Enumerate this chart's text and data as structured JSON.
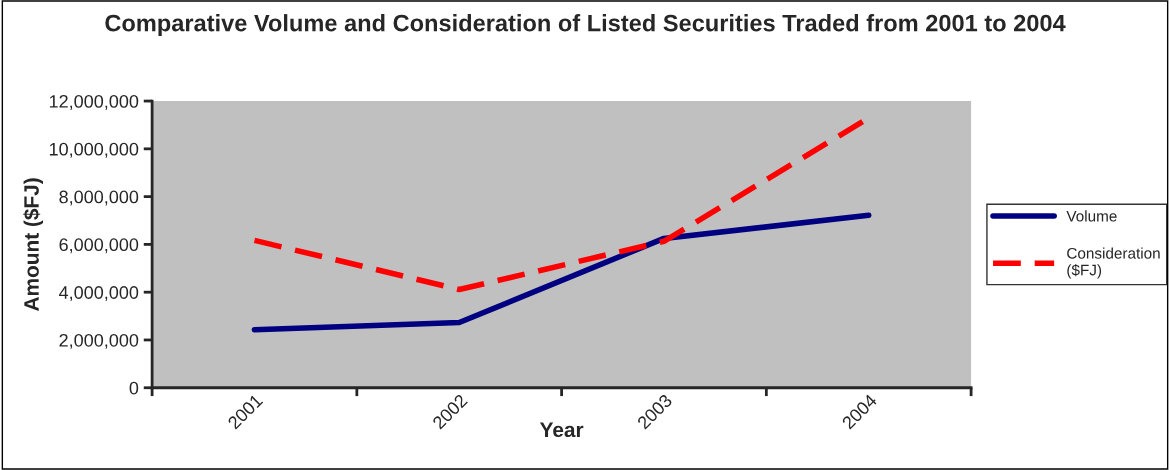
{
  "chart_data": {
    "type": "line",
    "title": "Comparative Volume and Consideration of Listed Securities Traded from 2001 to 2004",
    "xlabel": "Year",
    "ylabel": "Amount ($FJ)",
    "categories": [
      "2001",
      "2002",
      "2003",
      "2004"
    ],
    "series": [
      {
        "name": "Volume",
        "color": "#000080",
        "line_style": "solid",
        "values": [
          2430000,
          2730000,
          6250000,
          7220000
        ]
      },
      {
        "name": "Consideration\n($FJ)",
        "color": "#ff0000",
        "line_style": "dashed",
        "values": [
          6170000,
          4110000,
          6130000,
          11290000
        ]
      }
    ],
    "ylim": [
      0,
      12000000
    ],
    "yticks": [
      0,
      {
        "value": 2000000,
        "label": "2,000,000"
      },
      {
        "value": 4000000,
        "label": "4,000,000"
      },
      {
        "value": 6000000,
        "label": "6,000,000"
      },
      {
        "value": 8000000,
        "label": "8,000,000"
      },
      {
        "value": 10000000,
        "label": "10,000,000"
      },
      {
        "value": 12000000,
        "label": "12,000,000"
      }
    ],
    "legend": "right",
    "grid": false,
    "marker": "none"
  }
}
